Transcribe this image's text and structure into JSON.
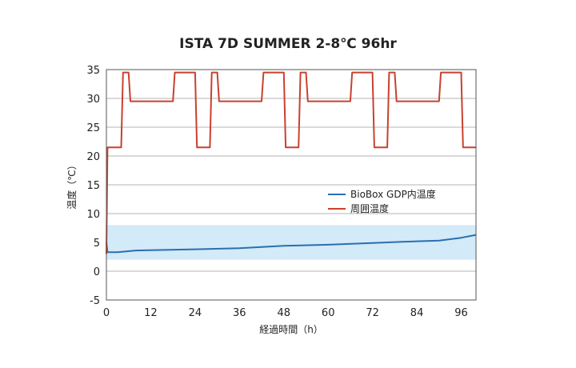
{
  "chart_data": {
    "type": "line",
    "title": "ISTA 7D SUMMER 2-8℃ 96hr",
    "xlabel": "経過時間（h）",
    "ylabel": "温度（℃）",
    "xlim": [
      0,
      100
    ],
    "ylim": [
      -5,
      35
    ],
    "xticks": [
      0,
      12,
      24,
      36,
      48,
      60,
      72,
      84,
      96
    ],
    "yticks": [
      -5,
      0,
      5,
      10,
      15,
      20,
      25,
      30,
      35
    ],
    "grid": "horizontal",
    "legend": "center-right",
    "band": {
      "from": 2,
      "to": 8,
      "color": "#d3eaf8"
    },
    "series": [
      {
        "name": "BioBox GDP内温度",
        "color": "#2a6fb0",
        "x": [
          0,
          0.3,
          3,
          8,
          16,
          24,
          36,
          48,
          60,
          72,
          84,
          90,
          96,
          100
        ],
        "y": [
          5,
          3.3,
          3.3,
          3.6,
          3.7,
          3.8,
          4.0,
          4.4,
          4.6,
          4.9,
          5.2,
          5.3,
          5.8,
          6.3
        ]
      },
      {
        "name": "周囲温度",
        "color": "#c8412f",
        "x": [
          0,
          0.3,
          4,
          4.5,
          6,
          6.5,
          18,
          18.5,
          24,
          24.5,
          28,
          28.5,
          30,
          30.5,
          42,
          42.5,
          48,
          48.5,
          52,
          52.5,
          54,
          54.5,
          66,
          66.5,
          72,
          72.5,
          76,
          76.5,
          78,
          78.5,
          90,
          90.5,
          96,
          96.5,
          100
        ],
        "y": [
          3,
          21.5,
          21.5,
          34.5,
          34.5,
          29.5,
          29.5,
          34.5,
          34.5,
          21.5,
          21.5,
          34.5,
          34.5,
          29.5,
          29.5,
          34.5,
          34.5,
          21.5,
          21.5,
          34.5,
          34.5,
          29.5,
          29.5,
          34.5,
          34.5,
          21.5,
          21.5,
          34.5,
          34.5,
          29.5,
          29.5,
          34.5,
          34.5,
          21.5,
          21.5
        ]
      }
    ]
  }
}
